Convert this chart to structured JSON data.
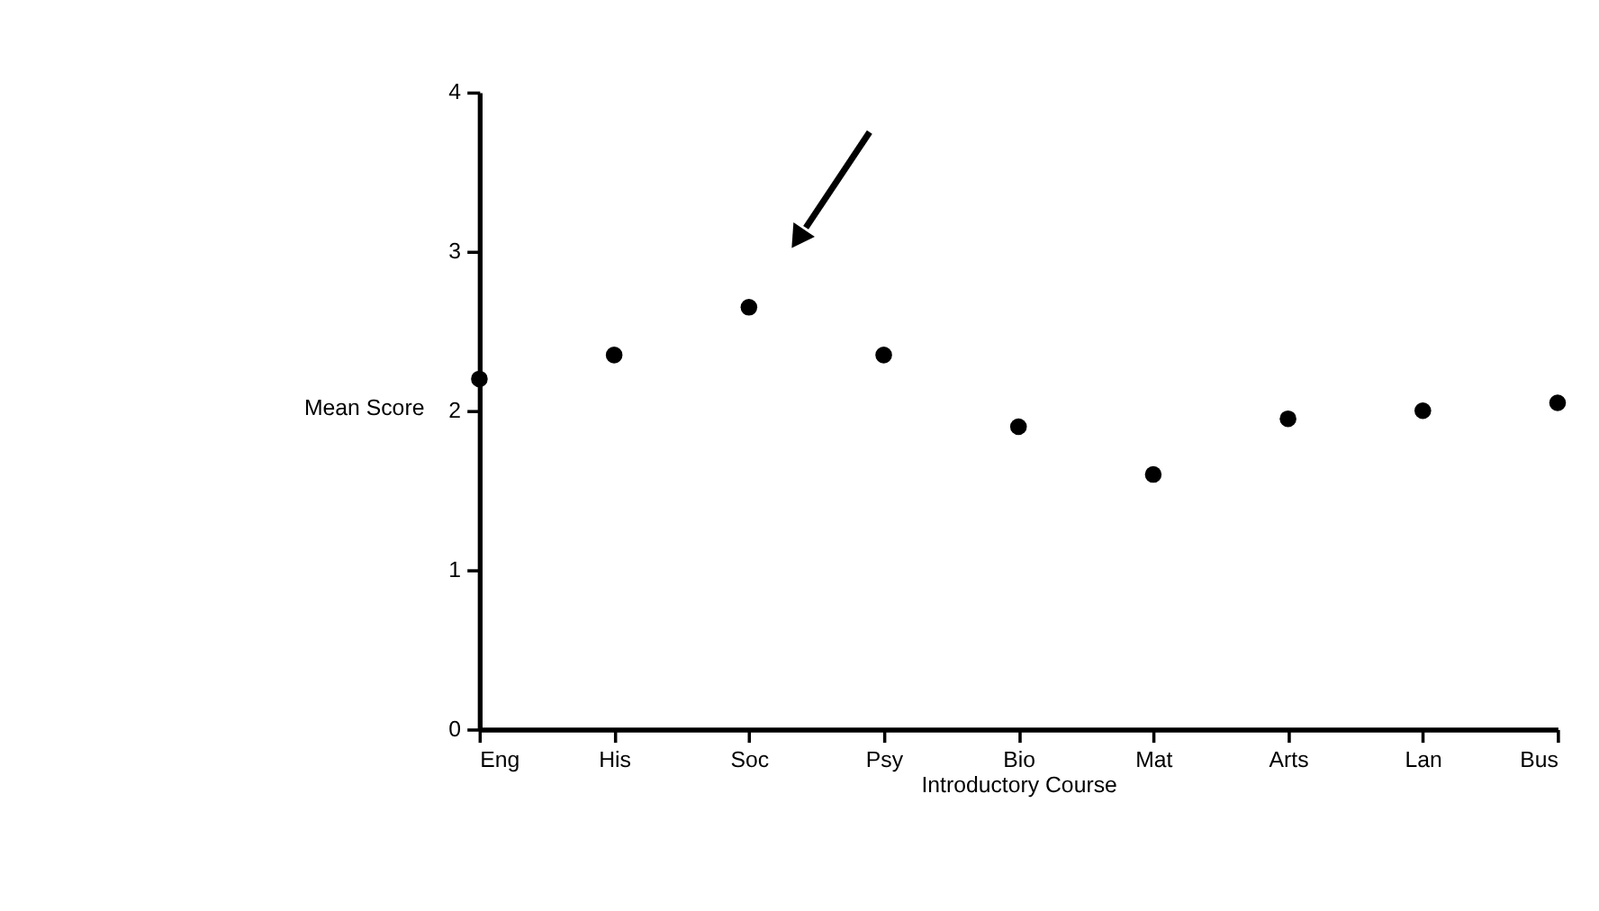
{
  "chart_data": {
    "type": "scatter",
    "xlabel": "Introductory Course",
    "ylabel": "Mean Score",
    "categories": [
      "Eng",
      "His",
      "Soc",
      "Psy",
      "Bio",
      "Mat",
      "Arts",
      "Lan",
      "Bus"
    ],
    "series": [
      {
        "color": "#000000",
        "values": [
          2.2,
          2.35,
          2.65,
          2.35,
          1.9,
          1.6,
          1.95,
          2.0,
          2.05
        ]
      }
    ],
    "ylim": [
      0,
      4
    ],
    "yticks": [
      0,
      1,
      2,
      3,
      4
    ],
    "grid": false,
    "marker": "circle"
  }
}
